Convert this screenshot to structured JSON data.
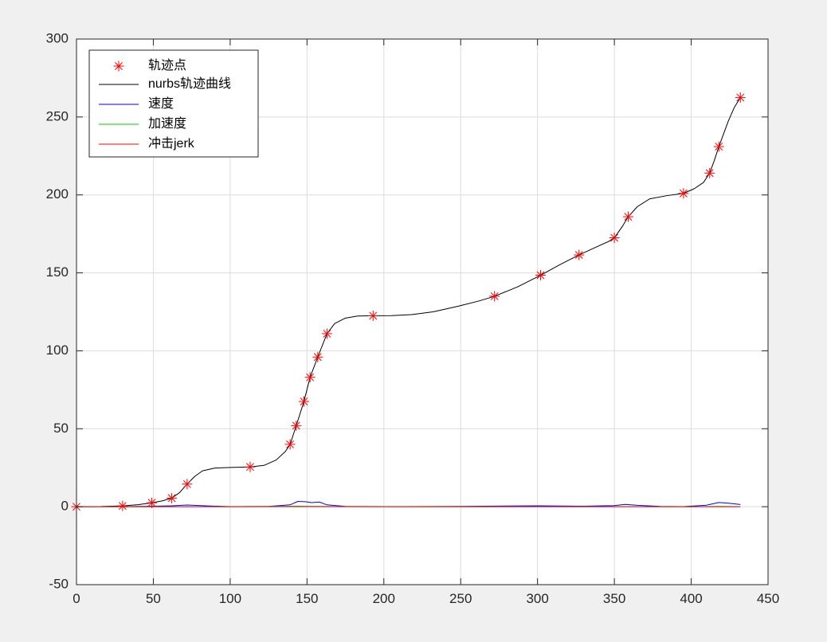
{
  "chart_data": {
    "type": "line",
    "title": "",
    "xlabel": "",
    "ylabel": "",
    "xlim": [
      0,
      450
    ],
    "ylim": [
      -50,
      300
    ],
    "xticks": [
      0,
      50,
      100,
      150,
      200,
      250,
      300,
      350,
      400,
      450
    ],
    "yticks": [
      -50,
      0,
      50,
      100,
      150,
      200,
      250,
      300
    ],
    "xtick_labels": [
      "0",
      "50",
      "100",
      "150",
      "200",
      "250",
      "300",
      "350",
      "400",
      "450"
    ],
    "ytick_labels": [
      "-50",
      "0",
      "50",
      "100",
      "150",
      "200",
      "250",
      "300"
    ],
    "grid": true,
    "legend_position": "top-left",
    "series": [
      {
        "name": "轨迹点",
        "color": "#ff0000",
        "marker": "asterisk",
        "points": [
          [
            0,
            0
          ],
          [
            30,
            0.5
          ],
          [
            49,
            2.5
          ],
          [
            62,
            5.5
          ],
          [
            72,
            14.5
          ],
          [
            113,
            25.5
          ],
          [
            139,
            40
          ],
          [
            143,
            52
          ],
          [
            148,
            67.5
          ],
          [
            152,
            83
          ],
          [
            157,
            96
          ],
          [
            163,
            111
          ],
          [
            193,
            122.5
          ],
          [
            272,
            135
          ],
          [
            302,
            148.5
          ],
          [
            327,
            161.5
          ],
          [
            350,
            172.5
          ],
          [
            359,
            186
          ],
          [
            395,
            201
          ],
          [
            412,
            214
          ],
          [
            418,
            231
          ],
          [
            432,
            262.5
          ]
        ]
      },
      {
        "name": "nurbs轨迹曲线",
        "color": "#000000",
        "points": [
          [
            0,
            0
          ],
          [
            15,
            0.1
          ],
          [
            30,
            0.5
          ],
          [
            40,
            1.3
          ],
          [
            49,
            2.5
          ],
          [
            56,
            3.8
          ],
          [
            62,
            5.5
          ],
          [
            67,
            9
          ],
          [
            72,
            14.5
          ],
          [
            77,
            19.5
          ],
          [
            82,
            23
          ],
          [
            90,
            24.8
          ],
          [
            100,
            25.2
          ],
          [
            113,
            25.5
          ],
          [
            122,
            26.5
          ],
          [
            130,
            30
          ],
          [
            136,
            35.5
          ],
          [
            139,
            40
          ],
          [
            143,
            52
          ],
          [
            148,
            67.5
          ],
          [
            152,
            83
          ],
          [
            157,
            96
          ],
          [
            163,
            111
          ],
          [
            168,
            117.5
          ],
          [
            175,
            121
          ],
          [
            183,
            122.3
          ],
          [
            193,
            122.5
          ],
          [
            205,
            122.6
          ],
          [
            218,
            123.2
          ],
          [
            232,
            125
          ],
          [
            248,
            128.5
          ],
          [
            262,
            132
          ],
          [
            272,
            135
          ],
          [
            287,
            141
          ],
          [
            302,
            148.5
          ],
          [
            315,
            155.5
          ],
          [
            327,
            161.5
          ],
          [
            338,
            166.5
          ],
          [
            346,
            170
          ],
          [
            350,
            172.5
          ],
          [
            355,
            179.5
          ],
          [
            359,
            186
          ],
          [
            365,
            192.5
          ],
          [
            373,
            197.5
          ],
          [
            384,
            199.5
          ],
          [
            395,
            201
          ],
          [
            402,
            204
          ],
          [
            408,
            208
          ],
          [
            412,
            214
          ],
          [
            415,
            222
          ],
          [
            418,
            231
          ],
          [
            424,
            247
          ],
          [
            428,
            256
          ],
          [
            432,
            262.5
          ]
        ]
      },
      {
        "name": "速度",
        "color": "#0000ff",
        "points": [
          [
            0,
            0
          ],
          [
            30,
            0.1
          ],
          [
            50,
            0.3
          ],
          [
            62,
            0.6
          ],
          [
            72,
            1.1
          ],
          [
            85,
            0.5
          ],
          [
            100,
            0.05
          ],
          [
            125,
            0.2
          ],
          [
            139,
            1.2
          ],
          [
            144,
            3.4
          ],
          [
            149,
            3.2
          ],
          [
            153,
            2.6
          ],
          [
            158,
            3.0
          ],
          [
            163,
            1.2
          ],
          [
            175,
            0.2
          ],
          [
            200,
            0.05
          ],
          [
            250,
            0.2
          ],
          [
            300,
            0.6
          ],
          [
            330,
            0.3
          ],
          [
            350,
            0.7
          ],
          [
            357,
            1.5
          ],
          [
            365,
            0.9
          ],
          [
            380,
            0.2
          ],
          [
            395,
            0.1
          ],
          [
            410,
            1.0
          ],
          [
            418,
            2.7
          ],
          [
            425,
            2.2
          ],
          [
            432,
            1.4
          ]
        ]
      },
      {
        "name": "加速度",
        "color": "#00cc00",
        "points": [
          [
            0,
            0
          ],
          [
            72,
            0.1
          ],
          [
            100,
            0
          ],
          [
            144,
            0.3
          ],
          [
            160,
            0.2
          ],
          [
            200,
            0
          ],
          [
            300,
            0.05
          ],
          [
            357,
            0.1
          ],
          [
            400,
            0
          ],
          [
            418,
            0.2
          ],
          [
            432,
            0.1
          ]
        ]
      },
      {
        "name": "冲击jerk",
        "color": "#ff0000",
        "points": [
          [
            0,
            0
          ],
          [
            100,
            0
          ],
          [
            144,
            0.05
          ],
          [
            200,
            0
          ],
          [
            300,
            0
          ],
          [
            400,
            0
          ],
          [
            432,
            0
          ]
        ]
      }
    ]
  }
}
